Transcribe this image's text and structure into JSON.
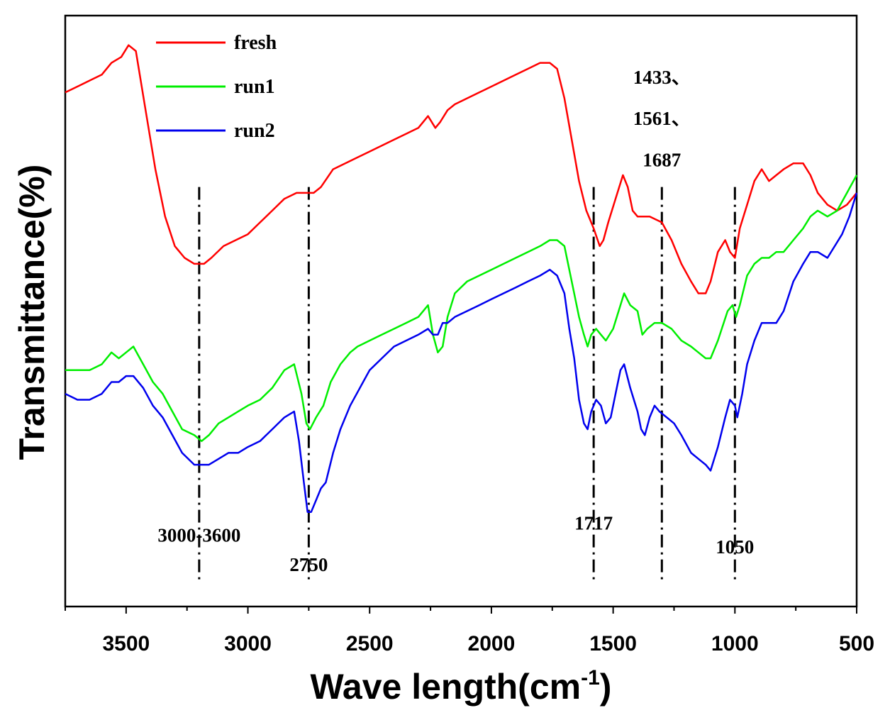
{
  "chart_data": {
    "type": "line",
    "title": "",
    "xlabel": "Wave length(cm",
    "xlabel_sup": "-1",
    "xlabel_end": ")",
    "ylabel": "Transmittance(%)",
    "xlim": [
      3750,
      500
    ],
    "ylim": [
      0,
      100
    ],
    "x_ticks": [
      3500,
      3000,
      2500,
      2000,
      1500,
      1000,
      500
    ],
    "x_tick_labels": [
      "3500",
      "3000",
      "2500",
      "2000",
      "1500",
      "1000",
      "500"
    ],
    "legend_position": "top-left",
    "series": [
      {
        "name": "fresh",
        "color": "#ff0000",
        "points": [
          [
            3750,
            87
          ],
          [
            3700,
            88
          ],
          [
            3650,
            89
          ],
          [
            3600,
            90
          ],
          [
            3560,
            92
          ],
          [
            3520,
            93
          ],
          [
            3490,
            95
          ],
          [
            3460,
            94
          ],
          [
            3420,
            84
          ],
          [
            3380,
            74
          ],
          [
            3340,
            66
          ],
          [
            3300,
            61
          ],
          [
            3260,
            59
          ],
          [
            3220,
            58
          ],
          [
            3180,
            58
          ],
          [
            3150,
            59
          ],
          [
            3100,
            61
          ],
          [
            3050,
            62
          ],
          [
            3000,
            63
          ],
          [
            2950,
            65
          ],
          [
            2900,
            67
          ],
          [
            2850,
            69
          ],
          [
            2800,
            70
          ],
          [
            2760,
            70
          ],
          [
            2730,
            70
          ],
          [
            2700,
            71
          ],
          [
            2650,
            74
          ],
          [
            2600,
            75
          ],
          [
            2550,
            76
          ],
          [
            2500,
            77
          ],
          [
            2450,
            78
          ],
          [
            2400,
            79
          ],
          [
            2350,
            80
          ],
          [
            2300,
            81
          ],
          [
            2260,
            83
          ],
          [
            2230,
            81
          ],
          [
            2210,
            82
          ],
          [
            2180,
            84
          ],
          [
            2150,
            85
          ],
          [
            2100,
            86
          ],
          [
            2050,
            87
          ],
          [
            2000,
            88
          ],
          [
            1950,
            89
          ],
          [
            1900,
            90
          ],
          [
            1850,
            91
          ],
          [
            1800,
            92
          ],
          [
            1760,
            92
          ],
          [
            1730,
            91
          ],
          [
            1700,
            86
          ],
          [
            1670,
            79
          ],
          [
            1640,
            72
          ],
          [
            1610,
            67
          ],
          [
            1580,
            64
          ],
          [
            1555,
            61
          ],
          [
            1540,
            62
          ],
          [
            1520,
            65
          ],
          [
            1490,
            69
          ],
          [
            1460,
            73
          ],
          [
            1440,
            71
          ],
          [
            1420,
            67
          ],
          [
            1400,
            66
          ],
          [
            1350,
            66
          ],
          [
            1300,
            65
          ],
          [
            1260,
            62
          ],
          [
            1220,
            58
          ],
          [
            1180,
            55
          ],
          [
            1150,
            53
          ],
          [
            1120,
            53
          ],
          [
            1100,
            55
          ],
          [
            1070,
            60
          ],
          [
            1040,
            62
          ],
          [
            1020,
            60
          ],
          [
            1000,
            59
          ],
          [
            980,
            64
          ],
          [
            950,
            68
          ],
          [
            920,
            72
          ],
          [
            890,
            74
          ],
          [
            860,
            72
          ],
          [
            830,
            73
          ],
          [
            800,
            74
          ],
          [
            760,
            75
          ],
          [
            720,
            75
          ],
          [
            690,
            73
          ],
          [
            660,
            70
          ],
          [
            620,
            68
          ],
          [
            580,
            67
          ],
          [
            540,
            68
          ],
          [
            500,
            70
          ]
        ]
      },
      {
        "name": "run1",
        "color": "#00ee00",
        "points": [
          [
            3750,
            40
          ],
          [
            3700,
            40
          ],
          [
            3650,
            40
          ],
          [
            3600,
            41
          ],
          [
            3560,
            43
          ],
          [
            3530,
            42
          ],
          [
            3500,
            43
          ],
          [
            3470,
            44
          ],
          [
            3430,
            41
          ],
          [
            3390,
            38
          ],
          [
            3350,
            36
          ],
          [
            3310,
            33
          ],
          [
            3270,
            30
          ],
          [
            3220,
            29
          ],
          [
            3190,
            28
          ],
          [
            3160,
            29
          ],
          [
            3120,
            31
          ],
          [
            3080,
            32
          ],
          [
            3040,
            33
          ],
          [
            3000,
            34
          ],
          [
            2950,
            35
          ],
          [
            2900,
            37
          ],
          [
            2850,
            40
          ],
          [
            2810,
            41
          ],
          [
            2780,
            36
          ],
          [
            2760,
            31
          ],
          [
            2745,
            30
          ],
          [
            2720,
            32
          ],
          [
            2690,
            34
          ],
          [
            2660,
            38
          ],
          [
            2620,
            41
          ],
          [
            2580,
            43
          ],
          [
            2550,
            44
          ],
          [
            2500,
            45
          ],
          [
            2450,
            46
          ],
          [
            2400,
            47
          ],
          [
            2350,
            48
          ],
          [
            2300,
            49
          ],
          [
            2260,
            51
          ],
          [
            2240,
            46
          ],
          [
            2220,
            43
          ],
          [
            2200,
            44
          ],
          [
            2180,
            49
          ],
          [
            2150,
            53
          ],
          [
            2100,
            55
          ],
          [
            2050,
            56
          ],
          [
            2000,
            57
          ],
          [
            1950,
            58
          ],
          [
            1900,
            59
          ],
          [
            1850,
            60
          ],
          [
            1800,
            61
          ],
          [
            1760,
            62
          ],
          [
            1730,
            62
          ],
          [
            1700,
            61
          ],
          [
            1670,
            55
          ],
          [
            1640,
            49
          ],
          [
            1620,
            46
          ],
          [
            1605,
            44
          ],
          [
            1590,
            46
          ],
          [
            1570,
            47
          ],
          [
            1550,
            46
          ],
          [
            1530,
            45
          ],
          [
            1500,
            47
          ],
          [
            1470,
            51
          ],
          [
            1455,
            53
          ],
          [
            1430,
            51
          ],
          [
            1400,
            50
          ],
          [
            1380,
            46
          ],
          [
            1360,
            47
          ],
          [
            1330,
            48
          ],
          [
            1300,
            48
          ],
          [
            1260,
            47
          ],
          [
            1220,
            45
          ],
          [
            1180,
            44
          ],
          [
            1150,
            43
          ],
          [
            1120,
            42
          ],
          [
            1100,
            42
          ],
          [
            1070,
            45
          ],
          [
            1030,
            50
          ],
          [
            1010,
            51
          ],
          [
            995,
            49
          ],
          [
            980,
            51
          ],
          [
            950,
            56
          ],
          [
            920,
            58
          ],
          [
            890,
            59
          ],
          [
            860,
            59
          ],
          [
            830,
            60
          ],
          [
            800,
            60
          ],
          [
            760,
            62
          ],
          [
            720,
            64
          ],
          [
            690,
            66
          ],
          [
            660,
            67
          ],
          [
            620,
            66
          ],
          [
            580,
            67
          ],
          [
            540,
            70
          ],
          [
            500,
            73
          ]
        ]
      },
      {
        "name": "run2",
        "color": "#0000ee",
        "points": [
          [
            3750,
            36
          ],
          [
            3700,
            35
          ],
          [
            3650,
            35
          ],
          [
            3600,
            36
          ],
          [
            3560,
            38
          ],
          [
            3530,
            38
          ],
          [
            3500,
            39
          ],
          [
            3470,
            39
          ],
          [
            3430,
            37
          ],
          [
            3390,
            34
          ],
          [
            3350,
            32
          ],
          [
            3310,
            29
          ],
          [
            3270,
            26
          ],
          [
            3220,
            24
          ],
          [
            3190,
            24
          ],
          [
            3160,
            24
          ],
          [
            3120,
            25
          ],
          [
            3080,
            26
          ],
          [
            3040,
            26
          ],
          [
            3000,
            27
          ],
          [
            2950,
            28
          ],
          [
            2900,
            30
          ],
          [
            2850,
            32
          ],
          [
            2810,
            33
          ],
          [
            2790,
            28
          ],
          [
            2770,
            21
          ],
          [
            2755,
            16
          ],
          [
            2740,
            16
          ],
          [
            2720,
            18
          ],
          [
            2700,
            20
          ],
          [
            2680,
            21
          ],
          [
            2650,
            26
          ],
          [
            2620,
            30
          ],
          [
            2580,
            34
          ],
          [
            2540,
            37
          ],
          [
            2500,
            40
          ],
          [
            2450,
            42
          ],
          [
            2400,
            44
          ],
          [
            2350,
            45
          ],
          [
            2300,
            46
          ],
          [
            2260,
            47
          ],
          [
            2240,
            46
          ],
          [
            2220,
            46
          ],
          [
            2200,
            48
          ],
          [
            2180,
            48
          ],
          [
            2150,
            49
          ],
          [
            2100,
            50
          ],
          [
            2050,
            51
          ],
          [
            2000,
            52
          ],
          [
            1950,
            53
          ],
          [
            1900,
            54
          ],
          [
            1850,
            55
          ],
          [
            1800,
            56
          ],
          [
            1760,
            57
          ],
          [
            1730,
            56
          ],
          [
            1700,
            53
          ],
          [
            1680,
            47
          ],
          [
            1660,
            42
          ],
          [
            1640,
            35
          ],
          [
            1620,
            31
          ],
          [
            1605,
            30
          ],
          [
            1590,
            33
          ],
          [
            1570,
            35
          ],
          [
            1550,
            34
          ],
          [
            1530,
            31
          ],
          [
            1510,
            32
          ],
          [
            1490,
            36
          ],
          [
            1470,
            40
          ],
          [
            1455,
            41
          ],
          [
            1430,
            37
          ],
          [
            1400,
            33
          ],
          [
            1385,
            30
          ],
          [
            1370,
            29
          ],
          [
            1350,
            32
          ],
          [
            1330,
            34
          ],
          [
            1310,
            33
          ],
          [
            1280,
            32
          ],
          [
            1250,
            31
          ],
          [
            1220,
            29
          ],
          [
            1180,
            26
          ],
          [
            1150,
            25
          ],
          [
            1120,
            24
          ],
          [
            1100,
            23
          ],
          [
            1070,
            27
          ],
          [
            1040,
            32
          ],
          [
            1020,
            35
          ],
          [
            1000,
            34
          ],
          [
            990,
            32
          ],
          [
            970,
            36
          ],
          [
            950,
            41
          ],
          [
            920,
            45
          ],
          [
            890,
            48
          ],
          [
            860,
            48
          ],
          [
            830,
            48
          ],
          [
            800,
            50
          ],
          [
            760,
            55
          ],
          [
            720,
            58
          ],
          [
            690,
            60
          ],
          [
            660,
            60
          ],
          [
            620,
            59
          ],
          [
            590,
            61
          ],
          [
            560,
            63
          ],
          [
            530,
            66
          ],
          [
            500,
            70
          ]
        ]
      }
    ],
    "vlines": [
      3200,
      2750,
      1580,
      1300,
      1000
    ],
    "annotations": [
      {
        "text": "3000-3600",
        "x": 3200,
        "y": 11
      },
      {
        "text": "2750",
        "x": 2750,
        "y": 6
      },
      {
        "text": "1717",
        "x": 1580,
        "y": 13
      },
      {
        "text": "1050",
        "x": 1000,
        "y": 9
      },
      {
        "text": "1433、",
        "x": 1300,
        "y": 88.5
      },
      {
        "text": "1561、",
        "x": 1300,
        "y": 81.5
      },
      {
        "text": "1687",
        "x": 1300,
        "y": 74.5
      }
    ]
  }
}
